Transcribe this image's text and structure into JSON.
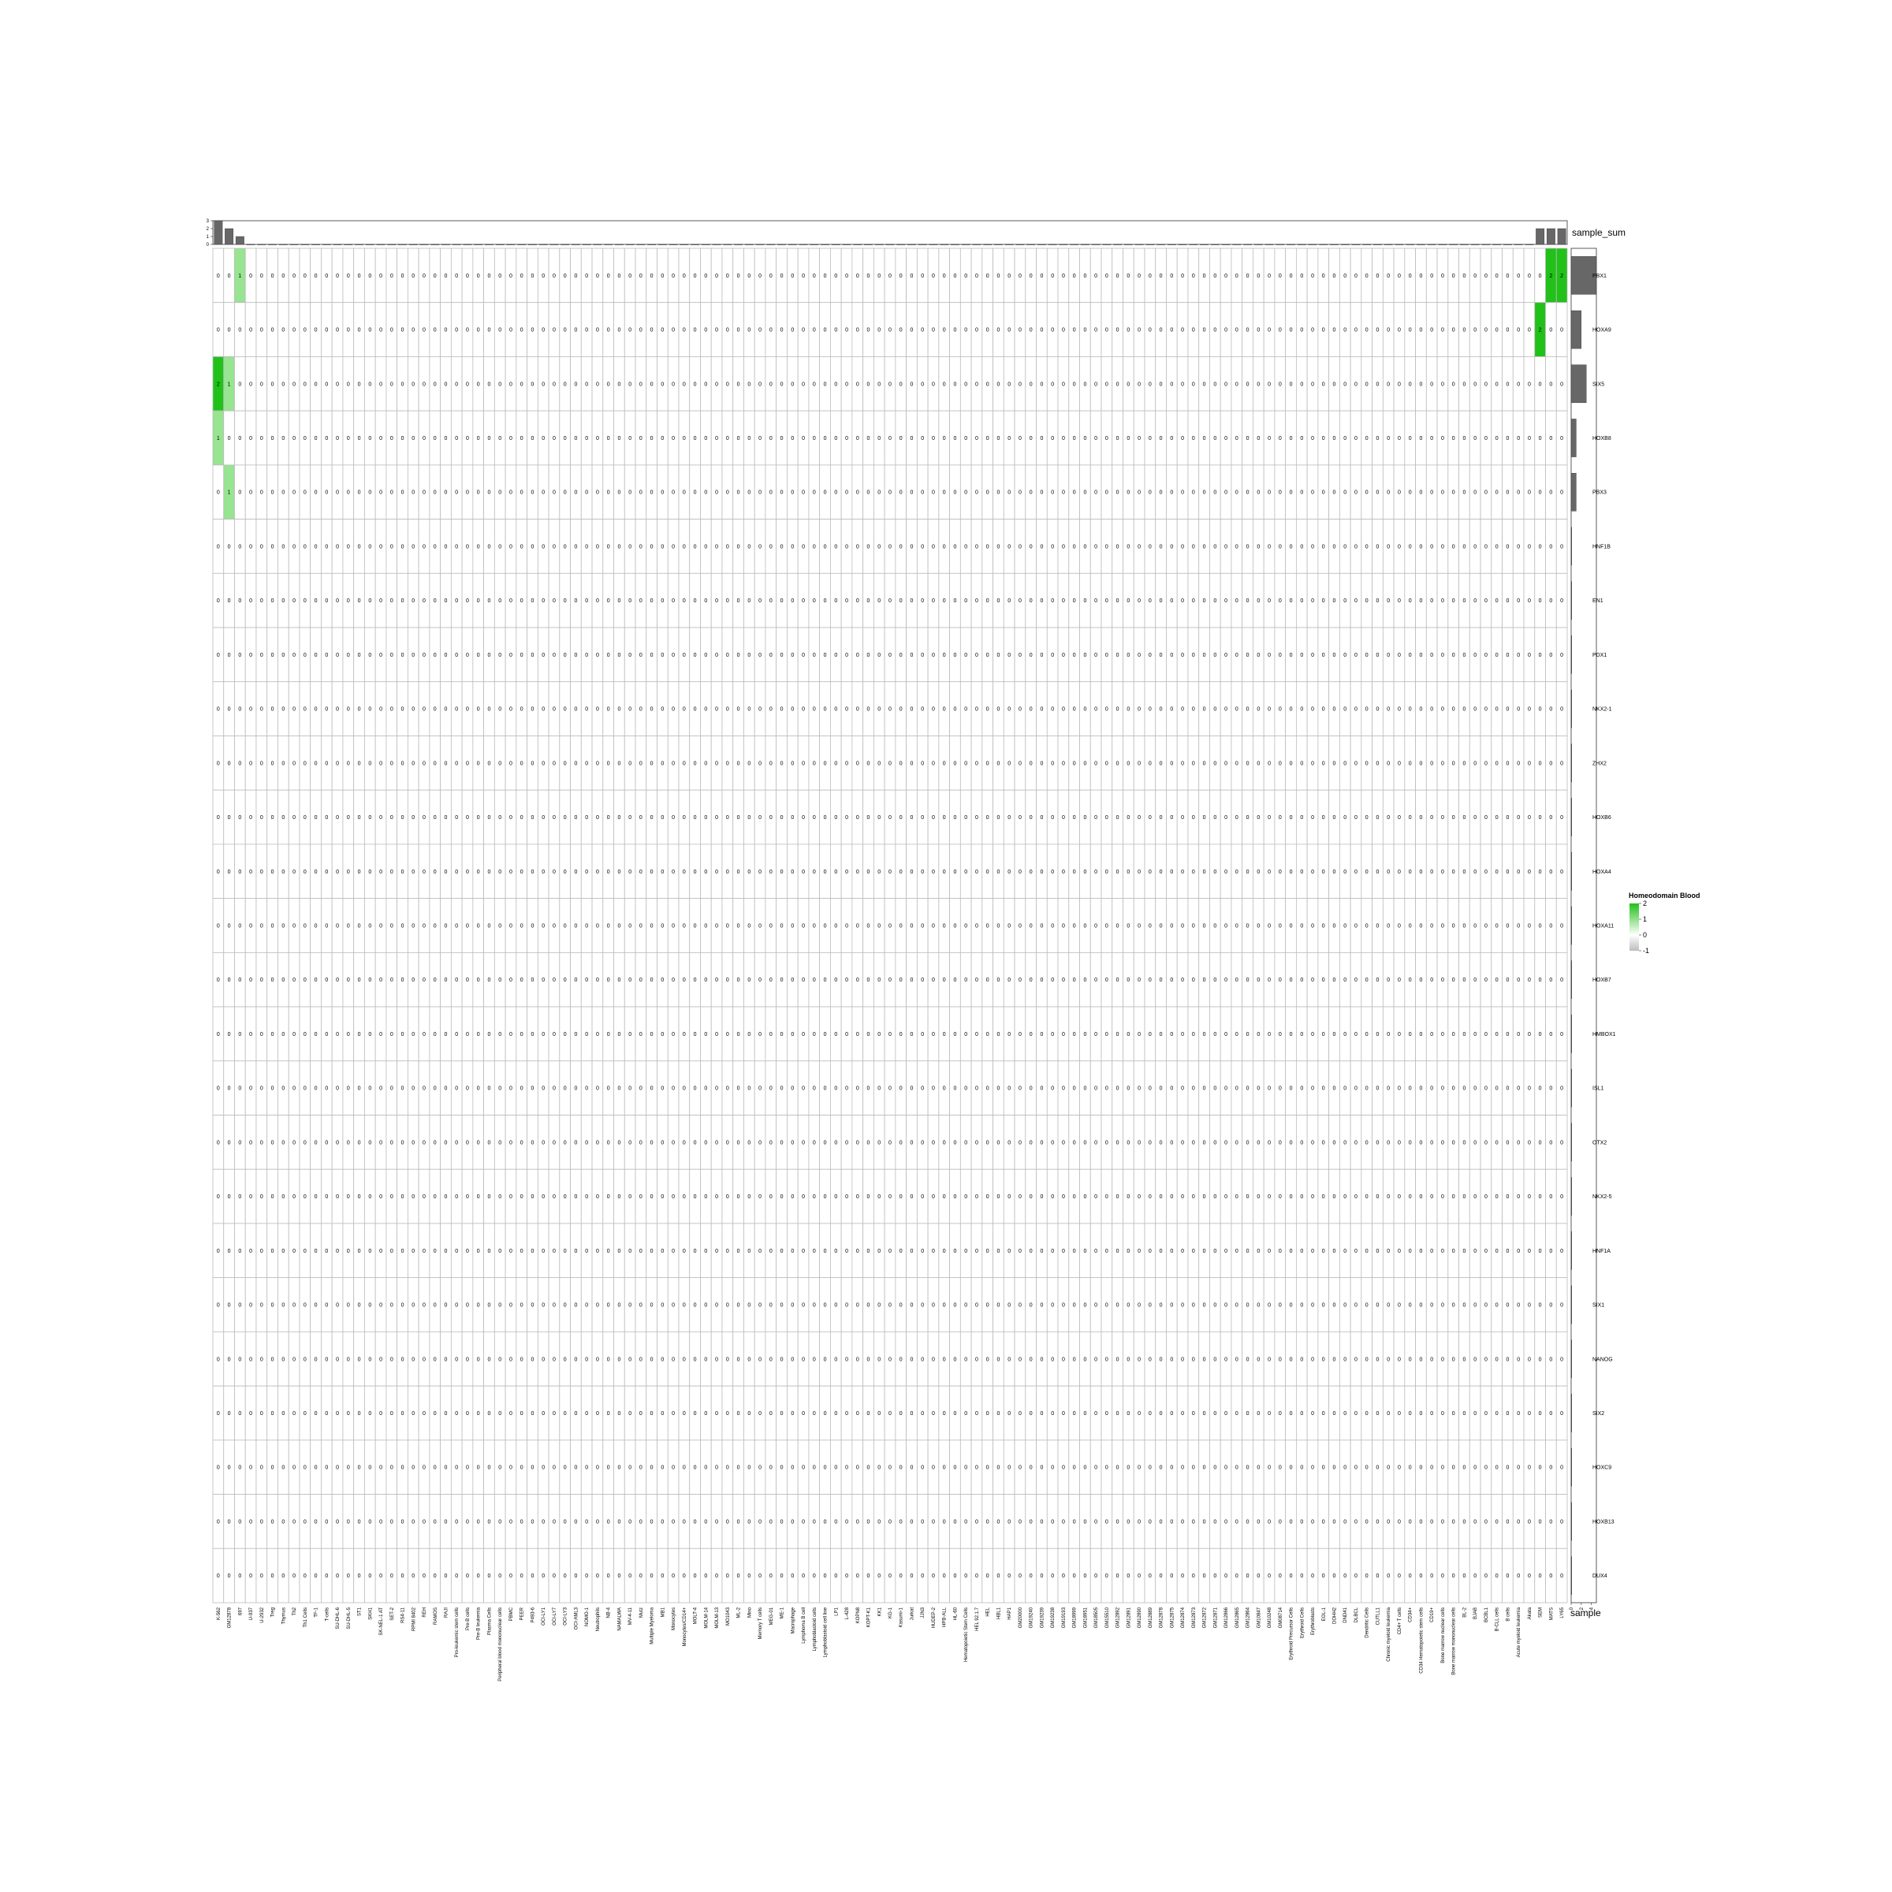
{
  "chart_data": {
    "type": "heatmap",
    "legend": {
      "title": "Homeodomain Blood",
      "ticks": [
        2,
        1,
        0,
        -1
      ],
      "colors": {
        "high": "#21c11a",
        "mid": "#ffffff",
        "low": "#bdbdbd"
      },
      "placement": "right"
    },
    "top_annotation": {
      "label": "sample_sum",
      "ticks": [
        0,
        1,
        2,
        3
      ]
    },
    "right_annotation": {
      "label": "sample",
      "ticks": [
        0,
        2,
        4
      ]
    },
    "grid": true,
    "rows": [
      "PBX1",
      "HOXA9",
      "SIX5",
      "HOXB8",
      "PBX3",
      "HNF1B",
      "EN1",
      "PDX1",
      "NKX2-1",
      "ZHX2",
      "HOXB6",
      "HOXA4",
      "HOXA11",
      "HOXB7",
      "HMBOX1",
      "ISL1",
      "OTX2",
      "NKX2-5",
      "HNF1A",
      "SIX1",
      "NANOG",
      "SIX2",
      "HOXC9",
      "HOXB13",
      "DUX4"
    ],
    "columns": [
      "K-562",
      "GM12878",
      "697",
      "U-937",
      "U-2932",
      "Treg",
      "Thymus",
      "Th2",
      "Th1 Cells",
      "TF-1",
      "T-cells",
      "SU-DHL-6",
      "SU-DHL-5",
      "ST1",
      "SKH1",
      "SK-NEL-1 AT",
      "SET-2",
      "RS4-11",
      "RPMI 8402",
      "REH",
      "RAMOS",
      "RAJI",
      "Pro-leukemic stem cells",
      "Pre-B cells",
      "Pre-B leukemia",
      "Plasma Cells",
      "Peripheral blood mononuclear cells",
      "PBMC",
      "PEER",
      "P493-6",
      "OCI-LY1",
      "OCI-LY7",
      "OCI-LY3",
      "OCI-AML3",
      "NOMO-1",
      "Neutrophils",
      "NB-4",
      "NAMALWA",
      "MV-4-11",
      "Mutz",
      "Multiple Myeloma",
      "MB1",
      "Monocytes",
      "Monocytes/CD14+",
      "MOLT-4",
      "MOLM-14",
      "MOLM-13",
      "MO1043",
      "ML-2",
      "Mino",
      "Memory T cells",
      "MEG-01",
      "ME-1",
      "Macrophage",
      "Lymphoma B cell",
      "Lymphoblastoid cells",
      "Lymphoblastoid cell line",
      "LP1",
      "L-428",
      "KOPN8",
      "KOPT-K1",
      "KK1",
      "KG-1",
      "Kasumi-1",
      "Jurkat",
      "JJN3",
      "HUDEP-2",
      "HPB-ALL",
      "HL-60",
      "Hematopoietic Stem Cells",
      "HEL 92.1.7",
      "HEL",
      "HBL1",
      "HAP1",
      "GM20000",
      "GM19240",
      "GM19239",
      "GM19238",
      "GM19193",
      "GM18999",
      "GM18951",
      "GM18505",
      "GM15510",
      "GM12892",
      "GM12891",
      "GM12890",
      "GM12889",
      "GM12878",
      "GM12875",
      "GM12874",
      "GM12873",
      "GM12872",
      "GM12871",
      "GM12866",
      "GM12865",
      "GM12864",
      "GM10847",
      "GM10248",
      "GM08714",
      "Erythroid Precursor Cells",
      "Erythroid Cells",
      "Erythroblasts",
      "EOL-1",
      "DOHH2",
      "DND41",
      "DLBCL",
      "Dendritic Cells",
      "CUTLL1",
      "Chronic myeloid leukemia",
      "CD4+ T cells",
      "CD34+",
      "CD34 Hematopoietic stem cells",
      "CD19+",
      "Bone marrow nuclear cells",
      "Bone marrow mononuclear cells",
      "BL-2",
      "BJAB",
      "BCBL1",
      "B-CLL cells",
      "B cells",
      "Acute myeloid leukemia",
      "Akata",
      "SEM",
      "MATS",
      "LY65"
    ],
    "nonzero_cells": [
      {
        "row": "PBX1",
        "column": "697",
        "value": 1
      },
      {
        "row": "PBX1",
        "column": "MATS",
        "value": 2
      },
      {
        "row": "PBX1",
        "column": "LY65",
        "value": 2
      },
      {
        "row": "HOXA9",
        "column": "SEM",
        "value": 2
      },
      {
        "row": "SIX5",
        "column": "K-562",
        "value": 2
      },
      {
        "row": "SIX5",
        "column": "GM12878",
        "value": 1
      },
      {
        "row": "HOXB8",
        "column": "K-562",
        "value": 1
      },
      {
        "row": "PBX3",
        "column": "GM12878",
        "value": 1
      }
    ],
    "default_value": 0,
    "row_sums": [
      5,
      2,
      3,
      1,
      1,
      0,
      0,
      0,
      0,
      0,
      0,
      0,
      0,
      0,
      0,
      0,
      0,
      0,
      0,
      0,
      0,
      0,
      0,
      0,
      0
    ],
    "column_sums_nonzero": [
      {
        "column": "K-562",
        "value": 3
      },
      {
        "column": "GM12878",
        "value": 2
      },
      {
        "column": "697",
        "value": 1
      },
      {
        "column": "SEM",
        "value": 2
      },
      {
        "column": "MATS",
        "value": 2
      },
      {
        "column": "LY65",
        "value": 2
      }
    ]
  }
}
